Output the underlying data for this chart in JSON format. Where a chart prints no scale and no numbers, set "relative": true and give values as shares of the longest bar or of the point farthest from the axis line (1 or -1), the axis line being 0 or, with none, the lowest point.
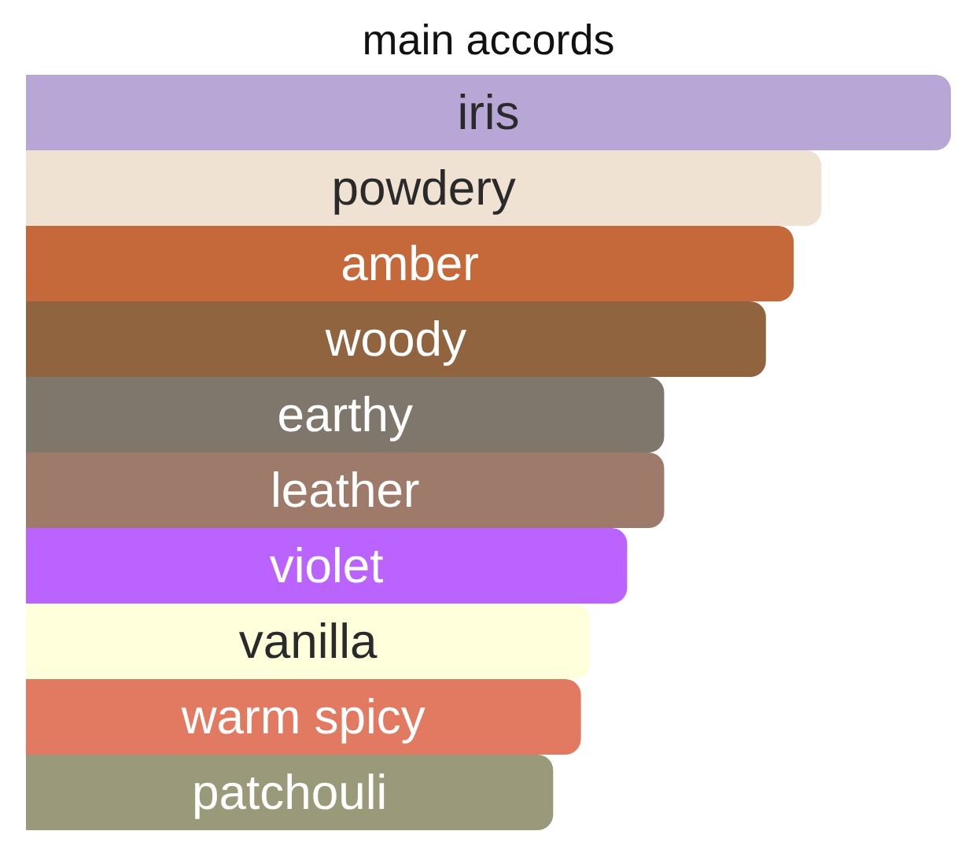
{
  "chart_data": {
    "type": "bar",
    "orientation": "horizontal",
    "relative": true,
    "title": "main accords",
    "categories": [
      "iris",
      "powdery",
      "amber",
      "woody",
      "earthy",
      "leather",
      "violet",
      "vanilla",
      "warm spicy",
      "patchouli"
    ],
    "values": [
      1,
      0.86,
      0.83,
      0.8,
      0.69,
      0.69,
      0.65,
      0.61,
      0.6,
      0.57
    ],
    "colors": [
      "#b8a6d6",
      "#efe2d3",
      "#c5693a",
      "#8f643e",
      "#7f776b",
      "#9e7a6a",
      "#bb63ff",
      "#ffffdb",
      "#e27a62",
      "#9a9a7a"
    ]
  }
}
